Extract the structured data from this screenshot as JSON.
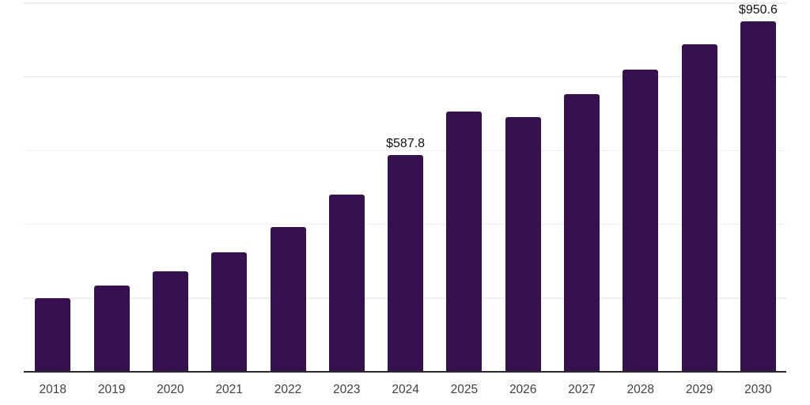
{
  "chart_data": {
    "type": "bar",
    "title": "",
    "xlabel": "",
    "ylabel": "",
    "categories": [
      "2018",
      "2019",
      "2020",
      "2021",
      "2022",
      "2023",
      "2024",
      "2025",
      "2026",
      "2027",
      "2028",
      "2029",
      "2030"
    ],
    "values": [
      199.5,
      233.5,
      272.9,
      324.2,
      392.6,
      480.0,
      587.8,
      705.5,
      690.0,
      753.5,
      818.0,
      887.5,
      950.6
    ],
    "value_labels": [
      "",
      "",
      "",
      "",
      "",
      "",
      "$587.8",
      "",
      "",
      "",
      "",
      "",
      "$950.6"
    ],
    "ylim": [
      0,
      1000
    ],
    "gridline_step": 200,
    "grid": true,
    "legend": "none",
    "colors": {
      "bar": "#351150",
      "axis_line": "#2b2b2b",
      "gridline": "#f0f0f0",
      "value_label_text": "#111111",
      "tick_label_text": "#404040",
      "background": "#ffffff"
    }
  }
}
